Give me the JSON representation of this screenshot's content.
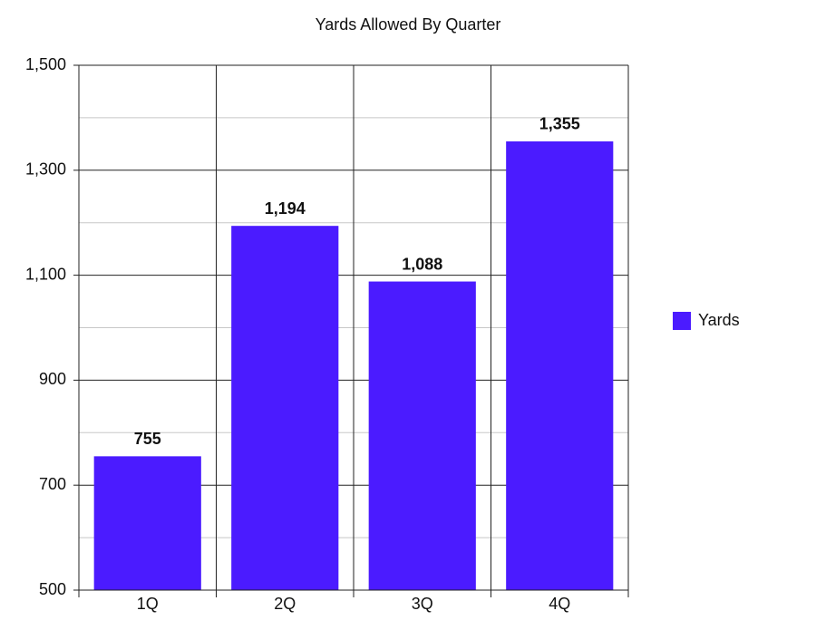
{
  "chart_data": {
    "type": "bar",
    "title": "Yards Allowed By Quarter",
    "categories": [
      "1Q",
      "2Q",
      "3Q",
      "4Q"
    ],
    "series": [
      {
        "name": "Yards",
        "color": "#4b1bff",
        "values": [
          755,
          1194,
          1088,
          1355
        ],
        "value_labels": [
          "755",
          "1,194",
          "1,088",
          "1,355"
        ]
      }
    ],
    "ylim": [
      500,
      1500
    ],
    "yticks": [
      500,
      700,
      900,
      {
        "value": 1100,
        "label": "1,100"
      },
      {
        "value": 1300,
        "label": "1,300"
      },
      {
        "value": 1500,
        "label": "1,500"
      }
    ],
    "minor_yticks": [
      600,
      800,
      1000,
      1200,
      1400
    ],
    "grid": true,
    "legend": "right"
  }
}
